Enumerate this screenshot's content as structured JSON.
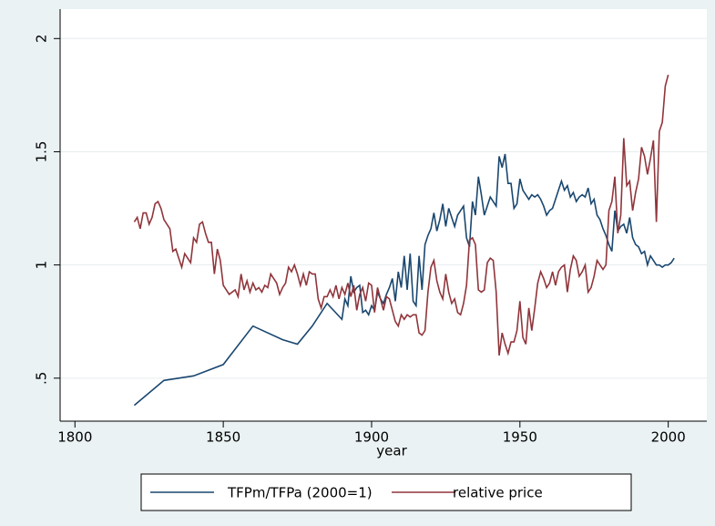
{
  "chart_data": {
    "type": "line",
    "x_label": "year",
    "xlim": [
      1795,
      2013
    ],
    "xticks": [
      1800,
      1850,
      1900,
      1950,
      2000
    ],
    "ylim": [
      0.31,
      2.13
    ],
    "yticks": [
      {
        "value": 0.5,
        "label": ".5"
      },
      1,
      1.5,
      2
    ],
    "grid": true,
    "legend": "bottom",
    "series": [
      {
        "name": "TFPm/TFPa (2000=1)",
        "color": "#1a476f",
        "x": [
          1820,
          1830,
          1840,
          1850,
          1860,
          1870,
          1875,
          1880,
          1885,
          1890,
          1891,
          1892,
          1893,
          1894,
          1895,
          1896,
          1897,
          1898,
          1899,
          1900,
          1901,
          1902,
          1903,
          1904,
          1905,
          1906,
          1907,
          1908,
          1909,
          1910,
          1911,
          1912,
          1913,
          1914,
          1915,
          1916,
          1917,
          1918,
          1919,
          1920,
          1921,
          1922,
          1923,
          1924,
          1925,
          1926,
          1927,
          1928,
          1929,
          1930,
          1931,
          1932,
          1933,
          1934,
          1935,
          1936,
          1937,
          1938,
          1939,
          1940,
          1941,
          1942,
          1943,
          1944,
          1945,
          1946,
          1947,
          1948,
          1949,
          1950,
          1951,
          1952,
          1953,
          1954,
          1955,
          1956,
          1957,
          1958,
          1959,
          1960,
          1961,
          1962,
          1963,
          1964,
          1965,
          1966,
          1967,
          1968,
          1969,
          1970,
          1971,
          1972,
          1973,
          1974,
          1975,
          1976,
          1977,
          1978,
          1979,
          1980,
          1981,
          1982,
          1983,
          1984,
          1985,
          1986,
          1987,
          1988,
          1989,
          1990,
          1991,
          1992,
          1993,
          1994,
          1995,
          1996,
          1997,
          1998,
          1999,
          2000,
          2001,
          2002
        ],
        "values": [
          0.38,
          0.49,
          0.51,
          0.56,
          0.73,
          0.67,
          0.65,
          0.73,
          0.83,
          0.76,
          0.85,
          0.82,
          0.95,
          0.88,
          0.9,
          0.91,
          0.79,
          0.8,
          0.78,
          0.82,
          0.8,
          0.88,
          0.85,
          0.83,
          0.87,
          0.9,
          0.94,
          0.84,
          0.97,
          0.9,
          1.04,
          0.89,
          1.05,
          0.84,
          0.82,
          1.04,
          0.89,
          1.09,
          1.13,
          1.16,
          1.23,
          1.15,
          1.2,
          1.27,
          1.17,
          1.25,
          1.21,
          1.17,
          1.22,
          1.24,
          1.26,
          1.12,
          1.08,
          1.28,
          1.22,
          1.39,
          1.31,
          1.22,
          1.26,
          1.3,
          1.28,
          1.26,
          1.48,
          1.43,
          1.49,
          1.36,
          1.36,
          1.25,
          1.27,
          1.38,
          1.33,
          1.31,
          1.29,
          1.31,
          1.3,
          1.31,
          1.29,
          1.26,
          1.22,
          1.24,
          1.25,
          1.29,
          1.33,
          1.37,
          1.33,
          1.35,
          1.3,
          1.32,
          1.28,
          1.3,
          1.31,
          1.3,
          1.34,
          1.27,
          1.29,
          1.22,
          1.2,
          1.16,
          1.13,
          1.09,
          1.06,
          1.24,
          1.15,
          1.17,
          1.18,
          1.14,
          1.21,
          1.12,
          1.09,
          1.08,
          1.05,
          1.06,
          1.0,
          1.04,
          1.02,
          1.0,
          1.0,
          0.99,
          1.0,
          1.0,
          1.01,
          1.03
        ]
      },
      {
        "name": "relative price",
        "color": "#90353b",
        "x": [
          1820,
          1821,
          1822,
          1823,
          1824,
          1825,
          1826,
          1827,
          1828,
          1829,
          1830,
          1831,
          1832,
          1833,
          1834,
          1835,
          1836,
          1837,
          1838,
          1839,
          1840,
          1841,
          1842,
          1843,
          1844,
          1845,
          1846,
          1847,
          1848,
          1849,
          1850,
          1851,
          1852,
          1853,
          1854,
          1855,
          1856,
          1857,
          1858,
          1859,
          1860,
          1861,
          1862,
          1863,
          1864,
          1865,
          1866,
          1867,
          1868,
          1869,
          1870,
          1871,
          1872,
          1873,
          1874,
          1875,
          1876,
          1877,
          1878,
          1879,
          1880,
          1881,
          1882,
          1883,
          1884,
          1885,
          1886,
          1887,
          1888,
          1889,
          1890,
          1891,
          1892,
          1893,
          1894,
          1895,
          1896,
          1897,
          1898,
          1899,
          1900,
          1901,
          1902,
          1903,
          1904,
          1905,
          1906,
          1907,
          1908,
          1909,
          1910,
          1911,
          1912,
          1913,
          1914,
          1915,
          1916,
          1917,
          1918,
          1919,
          1920,
          1921,
          1922,
          1923,
          1924,
          1925,
          1926,
          1927,
          1928,
          1929,
          1930,
          1931,
          1932,
          1933,
          1934,
          1935,
          1936,
          1937,
          1938,
          1939,
          1940,
          1941,
          1942,
          1943,
          1944,
          1945,
          1946,
          1947,
          1948,
          1949,
          1950,
          1951,
          1952,
          1953,
          1954,
          1955,
          1956,
          1957,
          1958,
          1959,
          1960,
          1961,
          1962,
          1963,
          1964,
          1965,
          1966,
          1967,
          1968,
          1969,
          1970,
          1971,
          1972,
          1973,
          1974,
          1975,
          1976,
          1977,
          1978,
          1979,
          1980,
          1981,
          1982,
          1983,
          1984,
          1985,
          1986,
          1987,
          1988,
          1989,
          1990,
          1991,
          1992,
          1993,
          1994,
          1995,
          1996,
          1997,
          1998,
          1999,
          2000
        ],
        "values": [
          1.19,
          1.21,
          1.16,
          1.23,
          1.23,
          1.18,
          1.21,
          1.27,
          1.28,
          1.25,
          1.2,
          1.18,
          1.16,
          1.06,
          1.07,
          1.03,
          0.99,
          1.05,
          1.03,
          1.01,
          1.12,
          1.1,
          1.18,
          1.19,
          1.14,
          1.1,
          1.1,
          0.96,
          1.07,
          1.02,
          0.91,
          0.89,
          0.87,
          0.88,
          0.89,
          0.86,
          0.96,
          0.89,
          0.93,
          0.88,
          0.92,
          0.89,
          0.9,
          0.88,
          0.91,
          0.9,
          0.96,
          0.94,
          0.92,
          0.87,
          0.9,
          0.92,
          0.99,
          0.97,
          1.0,
          0.96,
          0.91,
          0.96,
          0.91,
          0.97,
          0.96,
          0.96,
          0.85,
          0.81,
          0.86,
          0.86,
          0.89,
          0.86,
          0.91,
          0.85,
          0.9,
          0.87,
          0.92,
          0.86,
          0.91,
          0.8,
          0.87,
          0.9,
          0.84,
          0.92,
          0.91,
          0.79,
          0.9,
          0.85,
          0.8,
          0.86,
          0.85,
          0.8,
          0.75,
          0.73,
          0.78,
          0.76,
          0.78,
          0.77,
          0.78,
          0.78,
          0.7,
          0.69,
          0.71,
          0.88,
          0.99,
          1.02,
          0.93,
          0.88,
          0.85,
          0.96,
          0.88,
          0.83,
          0.85,
          0.79,
          0.78,
          0.83,
          0.91,
          1.11,
          1.12,
          1.09,
          0.89,
          0.88,
          0.89,
          1.01,
          1.03,
          1.02,
          0.88,
          0.6,
          0.7,
          0.65,
          0.61,
          0.66,
          0.66,
          0.71,
          0.84,
          0.68,
          0.65,
          0.81,
          0.71,
          0.81,
          0.92,
          0.97,
          0.94,
          0.9,
          0.92,
          0.97,
          0.91,
          0.97,
          0.99,
          1.0,
          0.88,
          0.98,
          1.04,
          1.02,
          0.95,
          0.97,
          1.0,
          0.88,
          0.9,
          0.95,
          1.02,
          1.0,
          0.98,
          1.0,
          1.24,
          1.28,
          1.39,
          1.14,
          1.22,
          1.56,
          1.35,
          1.37,
          1.24,
          1.32,
          1.38,
          1.52,
          1.48,
          1.4,
          1.47,
          1.55,
          1.19,
          1.59,
          1.63,
          1.79,
          1.84
        ]
      }
    ]
  }
}
